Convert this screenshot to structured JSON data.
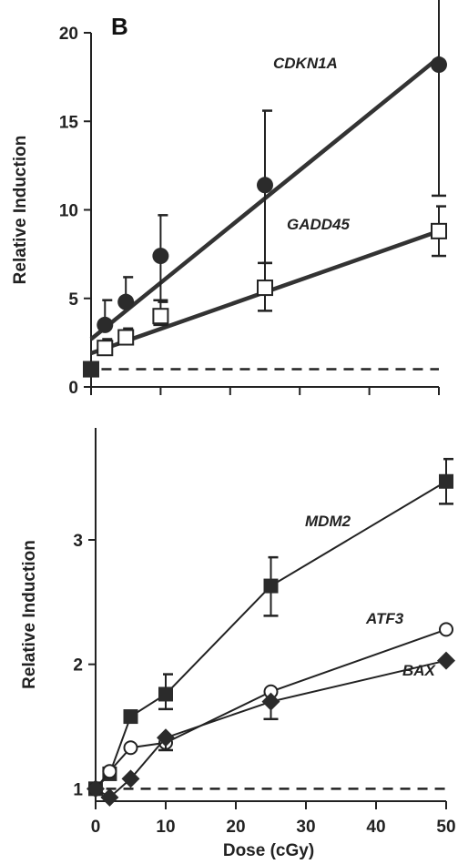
{
  "figure": {
    "panel_letter": "B",
    "xlabel": "Dose (cGy)"
  },
  "chart_data": [
    {
      "type": "line",
      "panel": "top",
      "ylabel": "Relative Induction",
      "xlabel": "",
      "xlim": [
        0,
        50
      ],
      "ylim": [
        0,
        20
      ],
      "yticks": [
        0,
        5,
        10,
        15,
        20
      ],
      "ytick_labels": [
        "0",
        "5",
        "10",
        "15",
        "20"
      ],
      "xticks": [
        0,
        10,
        20,
        30,
        40,
        50
      ],
      "xtick_labels": [],
      "baseline": 1,
      "series": [
        {
          "name": "CDKN1A",
          "marker": "filled-circle",
          "x": [
            0,
            2,
            5,
            10,
            25,
            50
          ],
          "y": [
            1.0,
            3.5,
            4.8,
            7.4,
            11.4,
            18.2
          ],
          "err_upper": [
            0,
            1.4,
            1.4,
            2.3,
            4.2,
            9.0
          ],
          "err_lower": [
            0,
            0,
            0,
            2.5,
            4.4,
            7.4
          ],
          "fit": [
            [
              0,
              2.7
            ],
            [
              50,
              18.6
            ]
          ]
        },
        {
          "name": "GADD45",
          "marker": "open-square",
          "x": [
            0,
            2,
            5,
            10,
            25,
            50
          ],
          "y": [
            1.0,
            2.2,
            2.8,
            4.0,
            5.6,
            8.8
          ],
          "err_upper": [
            0,
            0.5,
            0.5,
            0.8,
            1.4,
            1.4
          ],
          "err_lower": [
            0,
            0,
            0,
            0.5,
            1.3,
            1.4
          ],
          "fit": [
            [
              0,
              1.9
            ],
            [
              50,
              8.8
            ]
          ]
        }
      ]
    },
    {
      "type": "line",
      "panel": "bottom",
      "ylabel": "Relative Induction",
      "xlabel": "Dose (cGy)",
      "xlim": [
        0,
        50
      ],
      "ylim": [
        0.9,
        3.9
      ],
      "yticks": [
        1,
        2,
        3
      ],
      "ytick_labels": [
        "1",
        "2",
        "3"
      ],
      "xticks": [
        0,
        10,
        20,
        30,
        40,
        50
      ],
      "xtick_labels": [
        "0",
        "10",
        "20",
        "30",
        "40",
        "50"
      ],
      "baseline": 1,
      "series": [
        {
          "name": "MDM2",
          "marker": "filled-square",
          "x": [
            0,
            2,
            5,
            10,
            25,
            50
          ],
          "y": [
            1.0,
            1.12,
            1.58,
            1.76,
            2.63,
            3.47
          ],
          "err_upper": [
            0,
            0,
            0,
            0.16,
            0.23,
            0.18
          ],
          "err_lower": [
            0,
            0,
            0,
            0.12,
            0.24,
            0.18
          ]
        },
        {
          "name": "ATF3",
          "marker": "open-circle",
          "x": [
            0,
            2,
            5,
            10,
            25,
            50
          ],
          "y": [
            1.0,
            1.14,
            1.33,
            1.37,
            1.78,
            2.28
          ],
          "err_upper": [
            0,
            0,
            0,
            0,
            0,
            0
          ],
          "err_lower": [
            0,
            0,
            0,
            0,
            0,
            0
          ]
        },
        {
          "name": "BAX",
          "marker": "filled-diamond",
          "x": [
            0,
            2,
            5,
            10,
            25,
            50
          ],
          "y": [
            1.0,
            0.93,
            1.08,
            1.41,
            1.7,
            2.03
          ],
          "err_upper": [
            0,
            0,
            0,
            0,
            0,
            0
          ],
          "err_lower": [
            0,
            0,
            0,
            0.1,
            0.14,
            0
          ]
        }
      ]
    }
  ]
}
